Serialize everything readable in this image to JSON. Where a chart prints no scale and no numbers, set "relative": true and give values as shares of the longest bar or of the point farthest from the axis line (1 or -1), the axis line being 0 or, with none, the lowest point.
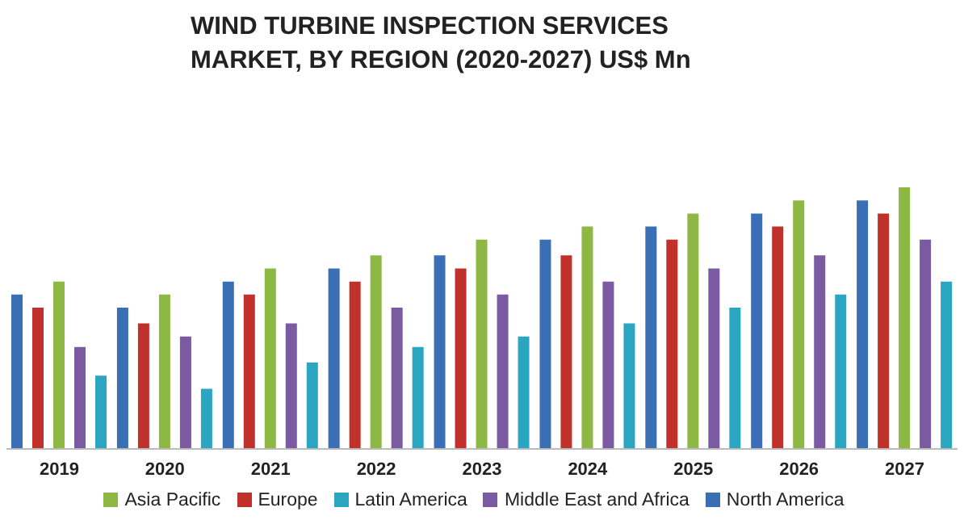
{
  "chart_data": {
    "type": "bar",
    "title": "WIND TURBINE INSPECTION SERVICES MARKET, BY REGION (2020-2027) US$ Mn",
    "relative": true,
    "categories": [
      "2019",
      "2020",
      "2021",
      "2022",
      "2023",
      "2024",
      "2025",
      "2026",
      "2027"
    ],
    "series": [
      {
        "name": "North America",
        "color": "#3a6fb5",
        "values": [
          0.59,
          0.54,
          0.64,
          0.69,
          0.74,
          0.8,
          0.85,
          0.9,
          0.95
        ]
      },
      {
        "name": "Europe",
        "color": "#c1312b",
        "values": [
          0.54,
          0.48,
          0.59,
          0.64,
          0.69,
          0.74,
          0.8,
          0.85,
          0.9
        ]
      },
      {
        "name": "Asia Pacific",
        "color": "#8db843",
        "values": [
          0.64,
          0.59,
          0.69,
          0.74,
          0.8,
          0.85,
          0.9,
          0.95,
          1
        ]
      },
      {
        "name": "Middle East and Africa",
        "color": "#7a5aa0",
        "values": [
          0.39,
          0.43,
          0.48,
          0.54,
          0.59,
          0.64,
          0.69,
          0.74,
          0.8
        ]
      },
      {
        "name": "Latin America",
        "color": "#2aa6c0",
        "values": [
          0.28,
          0.23,
          0.33,
          0.39,
          0.43,
          0.48,
          0.54,
          0.59,
          0.64
        ]
      }
    ],
    "grid": false,
    "legend": "bottom"
  }
}
